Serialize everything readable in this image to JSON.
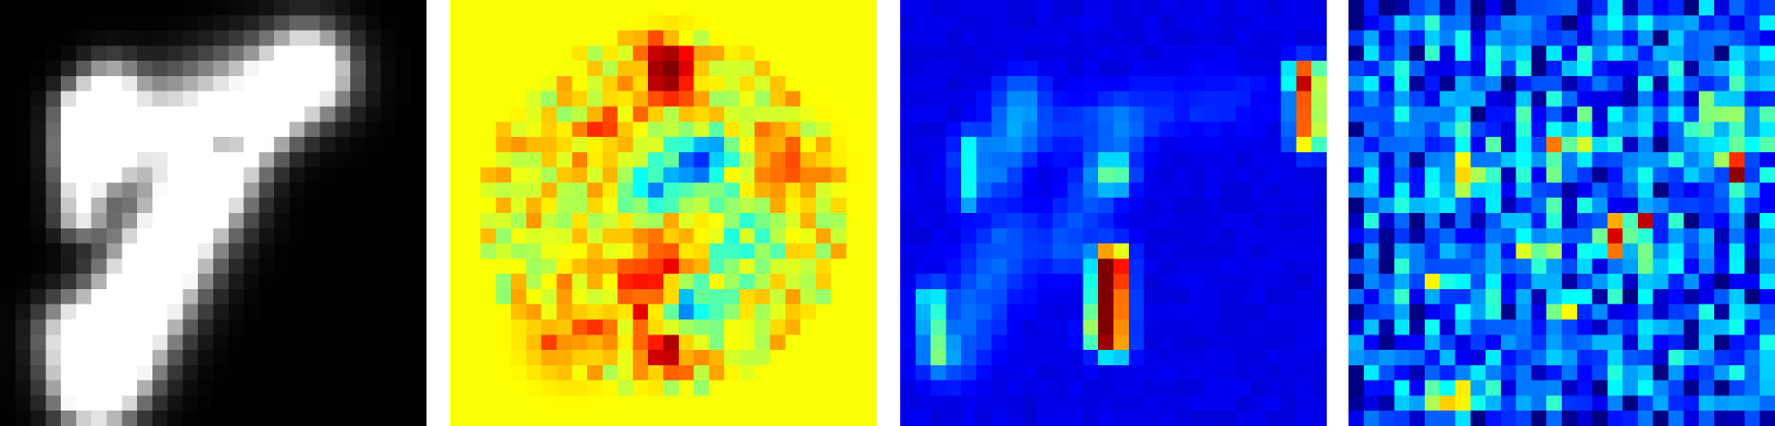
{
  "figure": {
    "grid_rows": 28,
    "grid_cols": 28,
    "panels": [
      {
        "id": "input-digit",
        "colormap": "gray",
        "background_value": 0.0,
        "blobs": [
          {
            "kind": "segment",
            "a": [
              5.3,
              7.3
            ],
            "b": [
              5.3,
              14.0
            ],
            "w": 1.1,
            "v": 0.97
          },
          {
            "kind": "segment",
            "a": [
              6.5,
              10.0
            ],
            "b": [
              7.2,
              6.0
            ],
            "w": 1.4,
            "v": 0.98
          },
          {
            "kind": "segment",
            "a": [
              8.0,
              9.0
            ],
            "b": [
              20.0,
              4.8
            ],
            "w": 2.1,
            "v": 0.97
          },
          {
            "kind": "segment",
            "a": [
              20.0,
              4.8
            ],
            "b": [
              13.0,
              13.0
            ],
            "w": 1.6,
            "v": 0.96
          },
          {
            "kind": "segment",
            "a": [
              13.0,
              13.0
            ],
            "b": [
              7.5,
              23.0
            ],
            "w": 2.2,
            "v": 0.97
          },
          {
            "kind": "segment",
            "a": [
              10.5,
              17.0
            ],
            "b": [
              6.5,
              25.0
            ],
            "w": 1.8,
            "v": 0.97
          },
          {
            "kind": "segment",
            "a": [
              5.0,
              22.0
            ],
            "b": [
              6.0,
              25.5
            ],
            "w": 1.6,
            "v": 0.95
          },
          {
            "kind": "point",
            "c": [
              8.8,
              21.5
            ],
            "w": 0.7,
            "v": -0.5
          },
          {
            "kind": "point",
            "c": [
              15.0,
              9.7
            ],
            "w": 0.6,
            "v": -0.95
          },
          {
            "kind": "point",
            "c": [
              16.0,
              6.3
            ],
            "w": 0.6,
            "v": -0.35
          }
        ]
      },
      {
        "id": "saliency-map",
        "colormap": "jet",
        "background_value": 0.62,
        "blobs": [
          {
            "kind": "point",
            "c": [
              14.5,
              4.5
            ],
            "w": 1.3,
            "v": 0.38
          },
          {
            "kind": "point",
            "c": [
              10.5,
              8.5
            ],
            "w": 1.4,
            "v": 0.16
          },
          {
            "kind": "point",
            "c": [
              16.5,
              10.5
            ],
            "w": 1.3,
            "v": -0.45
          },
          {
            "kind": "point",
            "c": [
              13.5,
              12.5
            ],
            "w": 1.2,
            "v": -0.3
          },
          {
            "kind": "point",
            "c": [
              14.5,
              16.5
            ],
            "w": 1.3,
            "v": 0.2
          },
          {
            "kind": "point",
            "c": [
              13.0,
              19.5
            ],
            "w": 1.4,
            "v": 0.25
          },
          {
            "kind": "point",
            "c": [
              15.5,
              20.5
            ],
            "w": 1.2,
            "v": -0.35
          },
          {
            "kind": "point",
            "c": [
              14.5,
              23.0
            ],
            "w": 1.0,
            "v": 0.38
          },
          {
            "kind": "point",
            "c": [
              8.0,
              22.0
            ],
            "w": 1.8,
            "v": 0.18
          },
          {
            "kind": "point",
            "c": [
              22.0,
              11.0
            ],
            "w": 2.0,
            "v": 0.1
          },
          {
            "kind": "point",
            "c": [
              19.0,
              16.0
            ],
            "w": 2.2,
            "v": -0.14
          }
        ]
      },
      {
        "id": "activation-map",
        "colormap": "jet",
        "background_value": 0.1,
        "blobs": [
          {
            "kind": "segment",
            "a": [
              6.5,
              11.0
            ],
            "b": [
              8.0,
              6.5
            ],
            "w": 1.2,
            "v": 0.14
          },
          {
            "kind": "segment",
            "a": [
              8.5,
              8.5
            ],
            "b": [
              22.0,
              6.5
            ],
            "w": 1.4,
            "v": 0.06
          },
          {
            "kind": "segment",
            "a": [
              11.0,
              16.5
            ],
            "b": [
              14.5,
              8.5
            ],
            "w": 1.3,
            "v": 0.1
          },
          {
            "kind": "segment",
            "a": [
              7.0,
              16.0
            ],
            "b": [
              3.5,
              23.0
            ],
            "w": 1.6,
            "v": 0.12
          },
          {
            "kind": "segment",
            "a": [
              14.0,
              17.0
            ],
            "b": [
              14.0,
              22.5
            ],
            "w": 0.7,
            "v": 0.78
          },
          {
            "kind": "segment",
            "a": [
              13.5,
              17.5
            ],
            "b": [
              13.0,
              22.0
            ],
            "w": 0.6,
            "v": 0.55
          },
          {
            "kind": "segment",
            "a": [
              2.0,
              19.5
            ],
            "b": [
              2.5,
              23.5
            ],
            "w": 0.6,
            "v": 0.3
          },
          {
            "kind": "segment",
            "a": [
              4.5,
              9.5
            ],
            "b": [
              4.5,
              13.0
            ],
            "w": 0.6,
            "v": 0.25
          },
          {
            "kind": "point",
            "c": [
              14.0,
              11.5
            ],
            "w": 0.8,
            "v": 0.35
          },
          {
            "kind": "segment",
            "a": [
              26.8,
              5.0
            ],
            "b": [
              26.8,
              9.0
            ],
            "w": 0.7,
            "v": 0.75
          },
          {
            "kind": "point",
            "c": [
              26.0,
              5.0
            ],
            "w": 0.6,
            "v": 0.3
          }
        ]
      },
      {
        "id": "gradient-map",
        "colormap": "jet",
        "background_value": 0.14,
        "blobs": [
          {
            "kind": "point",
            "c": [
              25.5,
              11.0
            ],
            "w": 0.6,
            "v": 0.82
          },
          {
            "kind": "point",
            "c": [
              17.5,
              15.5
            ],
            "w": 0.7,
            "v": 0.78
          },
          {
            "kind": "point",
            "c": [
              19.5,
              14.5
            ],
            "w": 0.6,
            "v": 0.55
          },
          {
            "kind": "point",
            "c": [
              14.0,
              9.5
            ],
            "w": 1.4,
            "v": 0.35
          },
          {
            "kind": "point",
            "c": [
              8.0,
              11.5
            ],
            "w": 1.4,
            "v": 0.3
          },
          {
            "kind": "point",
            "c": [
              19.5,
              17.0
            ],
            "w": 1.2,
            "v": 0.28
          },
          {
            "kind": "point",
            "c": [
              24.5,
              8.5
            ],
            "w": 1.5,
            "v": 0.32
          },
          {
            "kind": "point",
            "c": [
              7.0,
              26.0
            ],
            "w": 1.0,
            "v": 0.5
          },
          {
            "kind": "point",
            "c": [
              14.0,
              20.5
            ],
            "w": 0.6,
            "v": 0.55
          },
          {
            "kind": "point",
            "c": [
              12.0,
              16.0
            ],
            "w": 1.8,
            "v": 0.18
          },
          {
            "kind": "point",
            "c": [
              5.5,
              18.5
            ],
            "w": 0.6,
            "v": 0.4
          }
        ]
      }
    ]
  }
}
